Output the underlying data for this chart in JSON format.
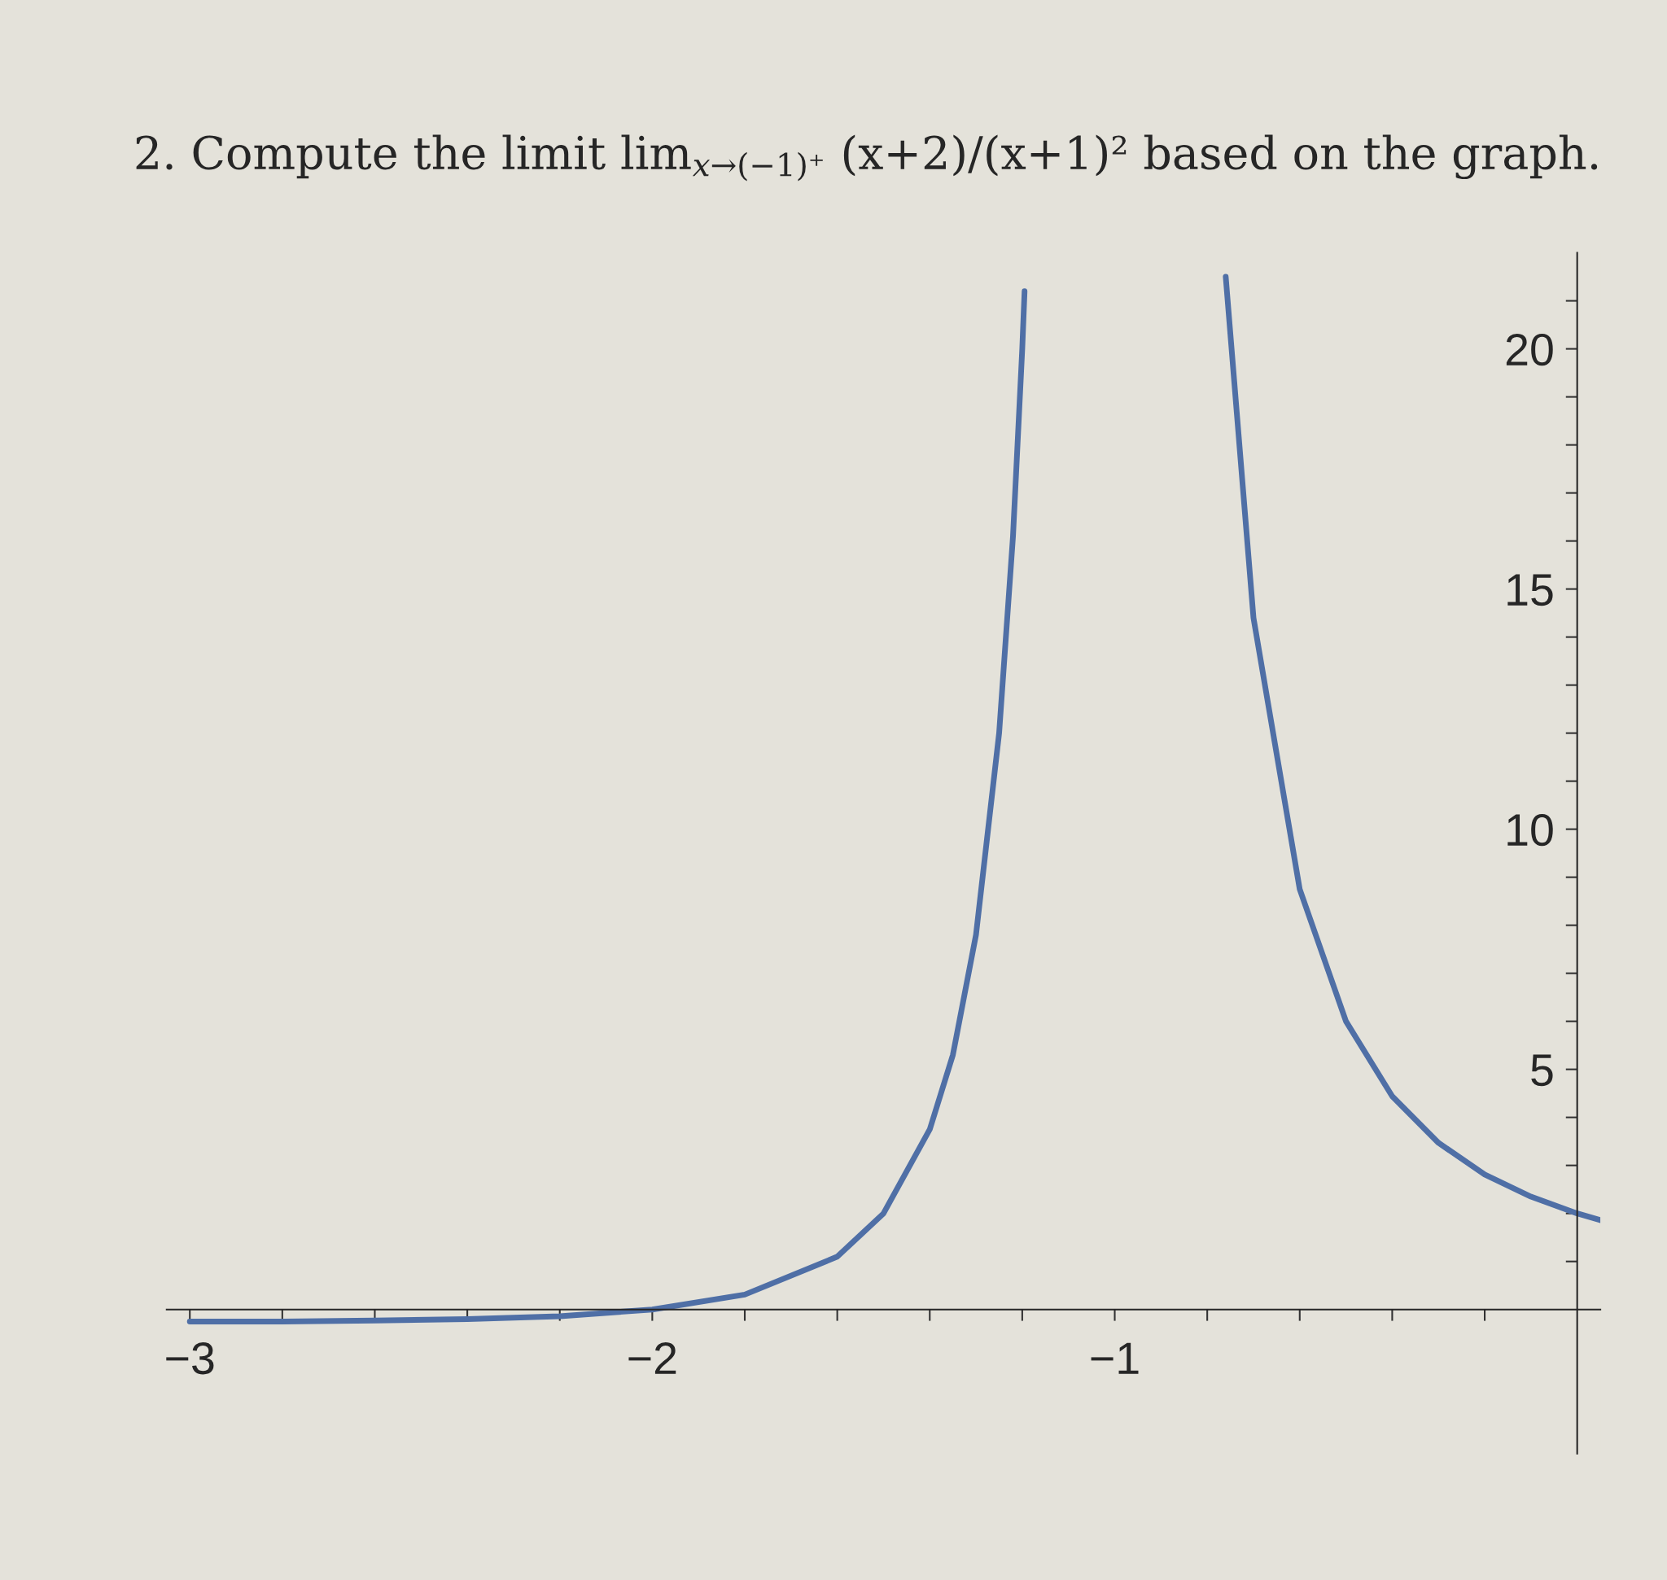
{
  "chart_data": {
    "type": "line",
    "title": "2. Compute the limit lim$_{x→(−1)⁺}$ (x+2)/(x+1)² based on the graph.",
    "series": [
      {
        "color": "#4f6fa6",
        "x": [
          -3,
          -2.8,
          -2.6,
          -2.4,
          -2.2,
          -2,
          -1.8,
          -1.6,
          -1.5,
          -1.4,
          -1.35,
          -1.3,
          -1.25,
          -1.22,
          -1.2,
          -1.195
        ],
        "values": [
          -0.25,
          -0.25,
          -0.23,
          -0.2,
          -0.14,
          0,
          0.31,
          1.1,
          2,
          3.75,
          5.3,
          7.8,
          12,
          16.1,
          20,
          21.2
        ]
      },
      {
        "color": "#4f6fa6",
        "x": [
          -0.76,
          -0.7,
          -0.6,
          -0.5,
          -0.4,
          -0.3,
          -0.2,
          -0.1,
          0,
          0.05
        ],
        "values": [
          21.5,
          14.4,
          8.75,
          6,
          4.44,
          3.47,
          2.81,
          2.35,
          2,
          1.86
        ]
      }
    ],
    "xlim": [
      -3.05,
      0.05
    ],
    "ylim": [
      -3,
      22
    ],
    "xticks": [
      -3,
      {
        "value": -2.8,
        "label": null
      },
      {
        "value": -2.6,
        "label": null
      },
      {
        "value": -2.4,
        "label": null
      },
      {
        "value": -2.2,
        "label": null
      },
      -2,
      {
        "value": -1.8,
        "label": null
      },
      {
        "value": -1.6,
        "label": null
      },
      {
        "value": -1.4,
        "label": null
      },
      {
        "value": -1.2,
        "label": null
      },
      -1,
      {
        "value": -0.8,
        "label": null
      },
      {
        "value": -0.6,
        "label": null
      },
      {
        "value": -0.4,
        "label": null
      },
      {
        "value": -0.2,
        "label": null
      }
    ],
    "yticks": [
      {
        "value": 1,
        "label": null
      },
      {
        "value": 2,
        "label": null
      },
      {
        "value": 3,
        "label": null
      },
      {
        "value": 4,
        "label": null
      },
      5,
      {
        "value": 6,
        "label": null
      },
      {
        "value": 7,
        "label": null
      },
      {
        "value": 8,
        "label": null
      },
      {
        "value": 9,
        "label": null
      },
      10,
      {
        "value": 11,
        "label": null
      },
      {
        "value": 12,
        "label": null
      },
      {
        "value": 13,
        "label": null
      },
      {
        "value": 14,
        "label": null
      },
      15,
      {
        "value": 16,
        "label": null
      },
      {
        "value": 17,
        "label": null
      },
      {
        "value": 18,
        "label": null
      },
      {
        "value": 19,
        "label": null
      },
      20,
      {
        "value": 21,
        "label": null
      }
    ],
    "grid": false
  }
}
